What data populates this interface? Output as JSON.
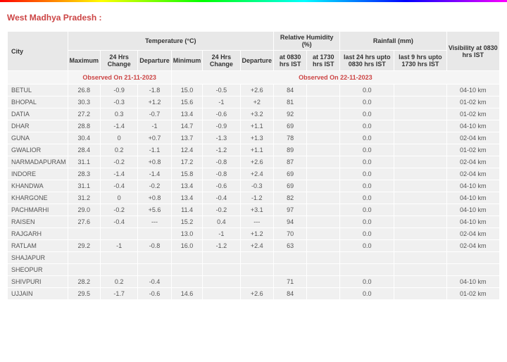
{
  "title": "West Madhya Pradesh :",
  "headers": {
    "city": "City",
    "temperature": "Temperature (°C)",
    "relative_humidity": "Relative Humidity (%)",
    "rainfall": "Rainfall (mm)",
    "visibility": "Visibility at 0830 hrs IST",
    "maximum": "Maximum",
    "temp_24hrs_change": "24 Hrs Change",
    "temp_departure": "Departure",
    "minimum": "Minimum",
    "min_24hrs_change": "24 Hrs Change",
    "min_departure": "Departure",
    "rh_0830": "at 0830 hrs IST",
    "rh_1730": "at 1730 hrs IST",
    "rain_24": "last 24 hrs upto 0830 hrs IST",
    "rain_9": "last 9 hrs upto 1730 hrs IST"
  },
  "observed": {
    "date1": "Observed On 21-11-2023",
    "date2": "Observed On 22-11-2023"
  },
  "rows": [
    {
      "city": "BETUL",
      "max": "26.8",
      "maxch": "-0.9",
      "maxdep": "-1.8",
      "min": "15.0",
      "minch": "-0.5",
      "mindep": "+2.6",
      "rh0830": "84",
      "rh1730": "",
      "rain24": "0.0",
      "rain9": "",
      "vis": "04-10 km"
    },
    {
      "city": "BHOPAL",
      "max": "30.3",
      "maxch": "-0.3",
      "maxdep": "+1.2",
      "min": "15.6",
      "minch": "-1",
      "mindep": "+2",
      "rh0830": "81",
      "rh1730": "",
      "rain24": "0.0",
      "rain9": "",
      "vis": "01-02 km"
    },
    {
      "city": "DATIA",
      "max": "27.2",
      "maxch": "0.3",
      "maxdep": "-0.7",
      "min": "13.4",
      "minch": "-0.6",
      "mindep": "+3.2",
      "rh0830": "92",
      "rh1730": "",
      "rain24": "0.0",
      "rain9": "",
      "vis": "01-02 km"
    },
    {
      "city": "DHAR",
      "max": "28.8",
      "maxch": "-1.4",
      "maxdep": "-1",
      "min": "14.7",
      "minch": "-0.9",
      "mindep": "+1.1",
      "rh0830": "69",
      "rh1730": "",
      "rain24": "0.0",
      "rain9": "",
      "vis": "04-10 km"
    },
    {
      "city": "GUNA",
      "max": "30.4",
      "maxch": "0",
      "maxdep": "+0.7",
      "min": "13.7",
      "minch": "-1.3",
      "mindep": "+1.3",
      "rh0830": "78",
      "rh1730": "",
      "rain24": "0.0",
      "rain9": "",
      "vis": "02-04 km"
    },
    {
      "city": "GWALIOR",
      "max": "28.4",
      "maxch": "0.2",
      "maxdep": "-1.1",
      "min": "12.4",
      "minch": "-1.2",
      "mindep": "+1.1",
      "rh0830": "89",
      "rh1730": "",
      "rain24": "0.0",
      "rain9": "",
      "vis": "01-02 km"
    },
    {
      "city": "NARMADAPURAM",
      "max": "31.1",
      "maxch": "-0.2",
      "maxdep": "+0.8",
      "min": "17.2",
      "minch": "-0.8",
      "mindep": "+2.6",
      "rh0830": "87",
      "rh1730": "",
      "rain24": "0.0",
      "rain9": "",
      "vis": "02-04 km"
    },
    {
      "city": "INDORE",
      "max": "28.3",
      "maxch": "-1.4",
      "maxdep": "-1.4",
      "min": "15.8",
      "minch": "-0.8",
      "mindep": "+2.4",
      "rh0830": "69",
      "rh1730": "",
      "rain24": "0.0",
      "rain9": "",
      "vis": "02-04 km"
    },
    {
      "city": "KHANDWA",
      "max": "31.1",
      "maxch": "-0.4",
      "maxdep": "-0.2",
      "min": "13.4",
      "minch": "-0.6",
      "mindep": "-0.3",
      "rh0830": "69",
      "rh1730": "",
      "rain24": "0.0",
      "rain9": "",
      "vis": "04-10 km"
    },
    {
      "city": "KHARGONE",
      "max": "31.2",
      "maxch": "0",
      "maxdep": "+0.8",
      "min": "13.4",
      "minch": "-0.4",
      "mindep": "-1.2",
      "rh0830": "82",
      "rh1730": "",
      "rain24": "0.0",
      "rain9": "",
      "vis": "04-10 km"
    },
    {
      "city": "PACHMARHI",
      "max": "29.0",
      "maxch": "-0.2",
      "maxdep": "+5.6",
      "min": "11.4",
      "minch": "-0.2",
      "mindep": "+3.1",
      "rh0830": "97",
      "rh1730": "",
      "rain24": "0.0",
      "rain9": "",
      "vis": "04-10 km"
    },
    {
      "city": "RAISEN",
      "max": "27.6",
      "maxch": "-0.4",
      "maxdep": "---",
      "min": "15.2",
      "minch": "0.4",
      "mindep": "---",
      "rh0830": "94",
      "rh1730": "",
      "rain24": "0.0",
      "rain9": "",
      "vis": "04-10 km"
    },
    {
      "city": "RAJGARH",
      "max": "",
      "maxch": "",
      "maxdep": "",
      "min": "13.0",
      "minch": "-1",
      "mindep": "+1.2",
      "rh0830": "70",
      "rh1730": "",
      "rain24": "0.0",
      "rain9": "",
      "vis": "02-04 km"
    },
    {
      "city": "RATLAM",
      "max": "29.2",
      "maxch": "-1",
      "maxdep": "-0.8",
      "min": "16.0",
      "minch": "-1.2",
      "mindep": "+2.4",
      "rh0830": "63",
      "rh1730": "",
      "rain24": "0.0",
      "rain9": "",
      "vis": "02-04 km"
    },
    {
      "city": "SHAJAPUR",
      "max": "",
      "maxch": "",
      "maxdep": "",
      "min": "",
      "minch": "",
      "mindep": "",
      "rh0830": "",
      "rh1730": "",
      "rain24": "",
      "rain9": "",
      "vis": ""
    },
    {
      "city": "SHEOPUR",
      "max": "",
      "maxch": "",
      "maxdep": "",
      "min": "",
      "minch": "",
      "mindep": "",
      "rh0830": "",
      "rh1730": "",
      "rain24": "",
      "rain9": "",
      "vis": ""
    },
    {
      "city": "SHIVPURI",
      "max": "28.2",
      "maxch": "0.2",
      "maxdep": "-0.4",
      "min": "",
      "minch": "",
      "mindep": "",
      "rh0830": "71",
      "rh1730": "",
      "rain24": "0.0",
      "rain9": "",
      "vis": "04-10 km"
    },
    {
      "city": "UJJAIN",
      "max": "29.5",
      "maxch": "-1.7",
      "maxdep": "-0.6",
      "min": "14.6",
      "minch": "",
      "mindep": "+2.6",
      "rh0830": "84",
      "rh1730": "",
      "rain24": "0.0",
      "rain9": "",
      "vis": "01-02 km"
    }
  ],
  "columns_width": {
    "city": "80px",
    "data": "48px"
  },
  "colors": {
    "title_color": "#cc4444",
    "header_bg": "#e8e8e8",
    "obs_bg": "#f5f5f5",
    "data_bg": "#f0f0f0",
    "text_color": "#555555",
    "border_color": "#ffffff"
  },
  "font": {
    "family": "Verdana, Arial, sans-serif",
    "title_size": 12,
    "header_size": 9,
    "data_size": 9
  }
}
